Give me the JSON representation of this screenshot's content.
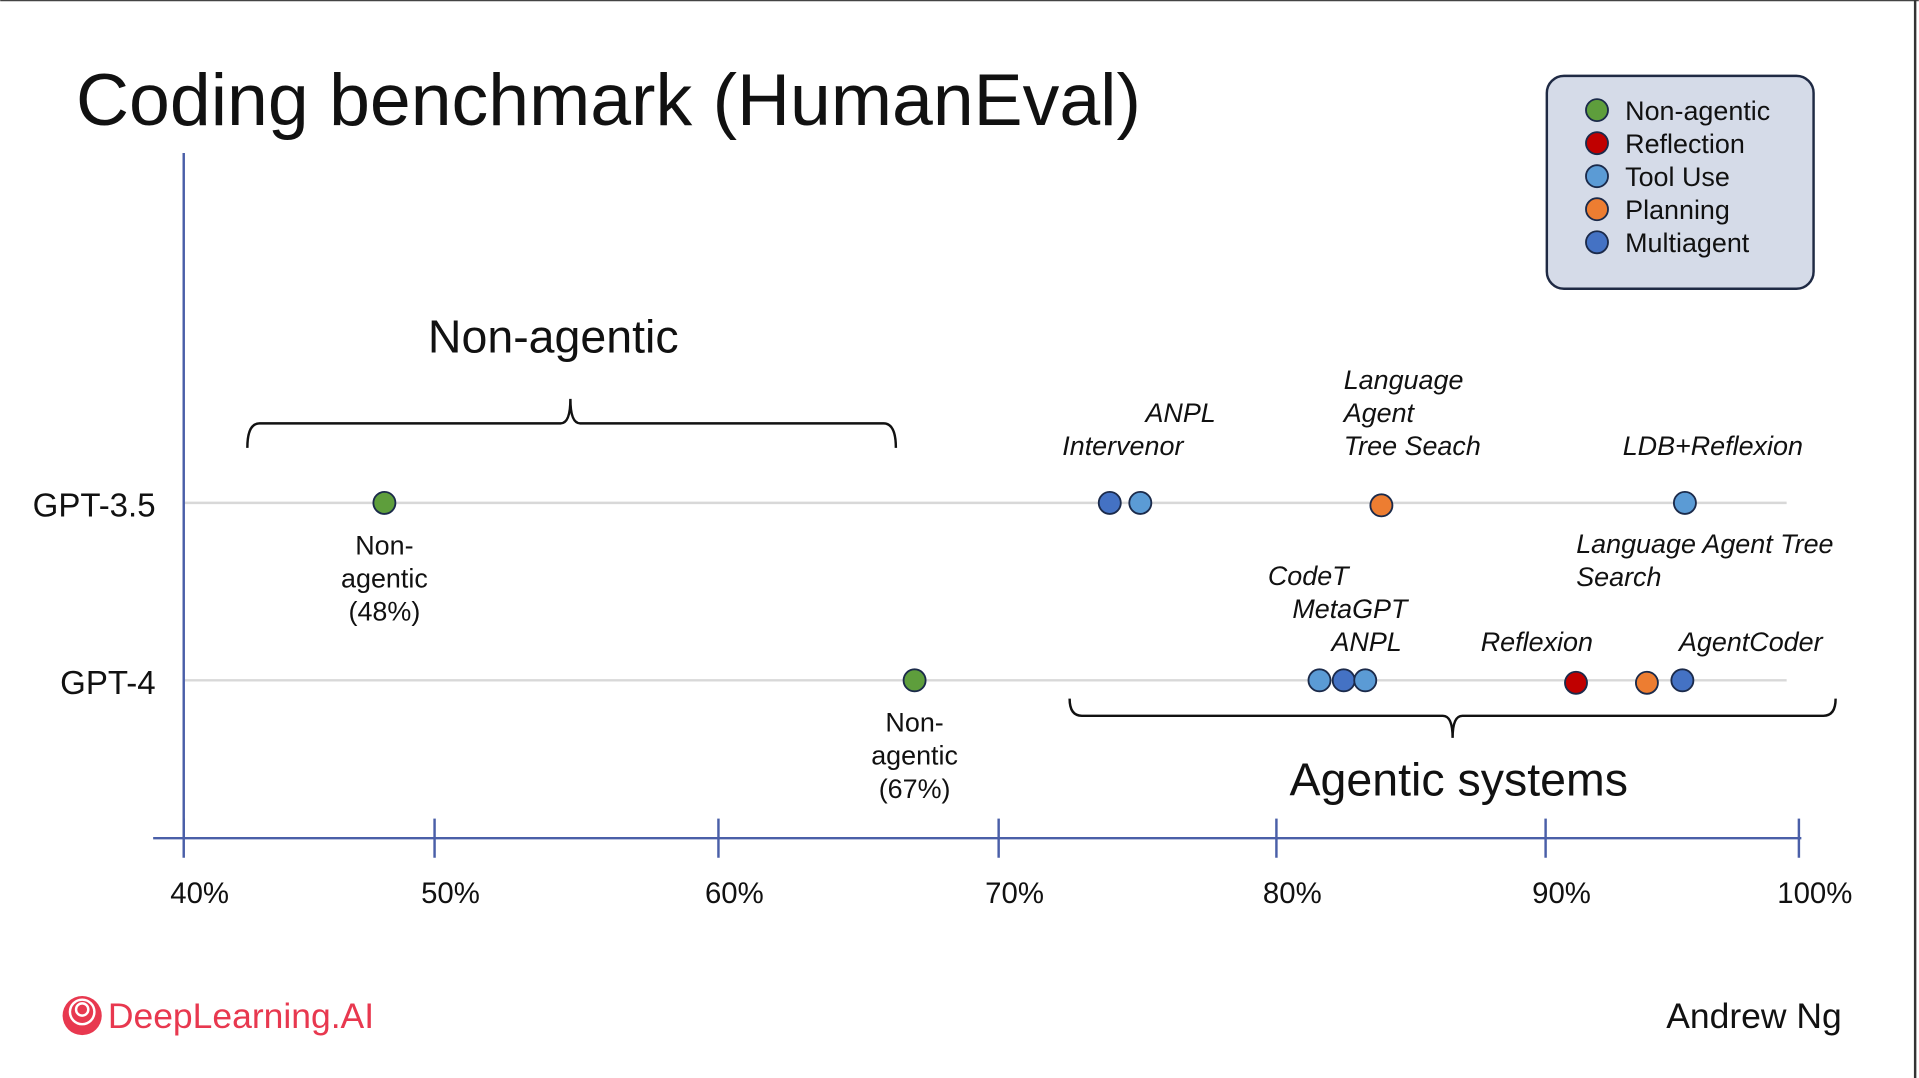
{
  "chart_data": {
    "type": "scatter",
    "title": "Coding benchmark (HumanEval)",
    "categories": [
      "GPT-3.5",
      "GPT-4"
    ],
    "x_ticks": [
      "40%",
      "50%",
      "60%",
      "70%",
      "80%",
      "90%",
      "100%"
    ],
    "xlim": [
      40,
      100
    ],
    "grid": "horizontal lines per row",
    "legend_placement": "top-right",
    "legend": [
      {
        "name": "Non-agentic",
        "color": "#5e9e3c"
      },
      {
        "name": "Reflection",
        "color": "#c00000"
      },
      {
        "name": "Tool Use",
        "color": "#5b9bd5"
      },
      {
        "name": "Planning",
        "color": "#ed7d31"
      },
      {
        "name": "Multiagent",
        "color": "#4472c4"
      }
    ],
    "points": [
      {
        "row": "GPT-3.5",
        "x": 48,
        "type": "Non-agentic"
      },
      {
        "row": "GPT-3.5",
        "x": 74.0,
        "type": "Multiagent"
      },
      {
        "row": "GPT-3.5",
        "x": 75.1,
        "type": "Tool Use"
      },
      {
        "row": "GPT-3.5",
        "x": 83.9,
        "type": "Planning"
      },
      {
        "row": "GPT-3.5",
        "x": 95.5,
        "type": "Tool Use"
      },
      {
        "row": "GPT-4",
        "x": 67,
        "type": "Non-agentic"
      },
      {
        "row": "GPT-4",
        "x": 81.6,
        "type": "Tool Use"
      },
      {
        "row": "GPT-4",
        "x": 82.5,
        "type": "Multiagent"
      },
      {
        "row": "GPT-4",
        "x": 83.3,
        "type": "Tool Use"
      },
      {
        "row": "GPT-4",
        "x": 91.2,
        "type": "Reflection"
      },
      {
        "row": "GPT-4",
        "x": 94.0,
        "type": "Planning"
      },
      {
        "row": "GPT-4",
        "x": 95.4,
        "type": "Multiagent"
      }
    ],
    "annotations": [
      {
        "row": "GPT-3.5",
        "x": 74.0,
        "lines": [
          "Intervenor"
        ]
      },
      {
        "row": "GPT-3.5",
        "x": 75.1,
        "lines": [
          "ANPL"
        ]
      },
      {
        "row": "GPT-3.5",
        "x": 83.9,
        "lines": [
          "Language",
          "Agent",
          "Tree Seach"
        ]
      },
      {
        "row": "GPT-3.5",
        "x": 95.5,
        "lines": [
          "LDB+Reflexion"
        ]
      },
      {
        "row": "GPT-4",
        "x": 81.6,
        "lines": [
          "CodeT"
        ]
      },
      {
        "row": "GPT-4",
        "x": 82.5,
        "lines": [
          "MetaGPT"
        ]
      },
      {
        "row": "GPT-4",
        "x": 83.3,
        "lines": [
          "ANPL"
        ]
      },
      {
        "row": "GPT-4",
        "x": 91.2,
        "lines": [
          "Reflexion"
        ]
      },
      {
        "row": "GPT-4",
        "x": 94.0,
        "lines": [
          "Language Agent Tree",
          "Search"
        ]
      },
      {
        "row": "GPT-4",
        "x": 95.4,
        "lines": [
          "AgentCoder"
        ]
      }
    ],
    "point_labels": [
      {
        "row": "GPT-3.5",
        "lines": [
          "Non-",
          "agentic",
          "(48%)"
        ]
      },
      {
        "row": "GPT-4",
        "lines": [
          "Non-",
          "agentic",
          "(67%)"
        ]
      }
    ],
    "brackets": [
      {
        "label": "Non-agentic"
      },
      {
        "label": "Agentic systems"
      }
    ]
  },
  "footer": {
    "brand": "DeepLearning.AI",
    "author": "Andrew Ng"
  }
}
